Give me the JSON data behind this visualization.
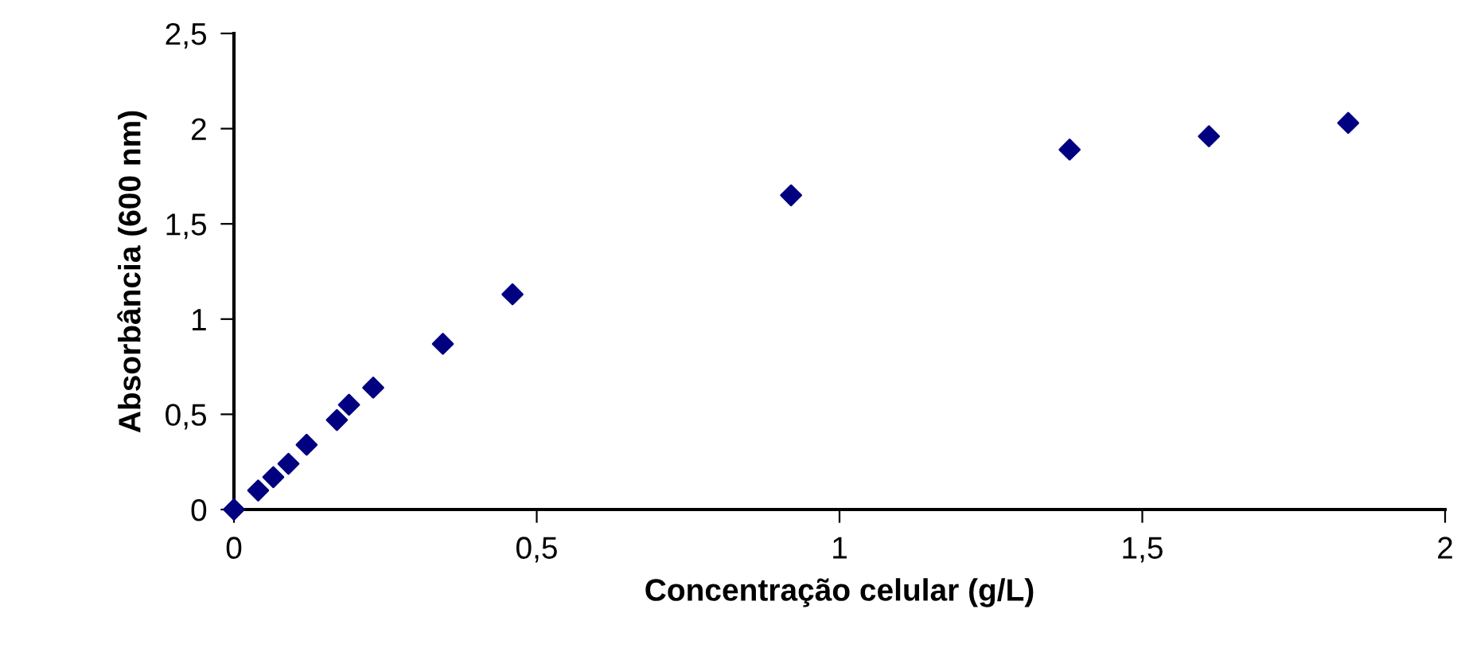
{
  "chart_data": {
    "type": "scatter",
    "xlabel": "Concentração celular (g/L)",
    "ylabel": "Absorbância (600 nm)",
    "x": [
      0,
      0.04,
      0.065,
      0.09,
      0.12,
      0.17,
      0.19,
      0.23,
      0.345,
      0.46,
      0.92,
      1.38,
      1.61,
      1.84
    ],
    "series": [
      {
        "color": "#000080",
        "values": [
          0,
          0.1,
          0.17,
          0.24,
          0.34,
          0.47,
          0.55,
          0.64,
          0.87,
          1.13,
          1.65,
          1.89,
          1.96,
          2.03
        ]
      }
    ],
    "marker": "diamond",
    "xlim": [
      0,
      2
    ],
    "ylim": [
      0,
      2.5
    ],
    "xticks": [
      0,
      {
        "value": 0.5,
        "label": "0,5"
      },
      1,
      {
        "value": 1.5,
        "label": "1,5"
      },
      2
    ],
    "yticks": [
      0,
      {
        "value": 0.5,
        "label": "0,5"
      },
      1,
      {
        "value": 1.5,
        "label": "1,5"
      },
      2,
      {
        "value": 2.5,
        "label": "2,5"
      }
    ],
    "grid": false,
    "legend": false
  }
}
